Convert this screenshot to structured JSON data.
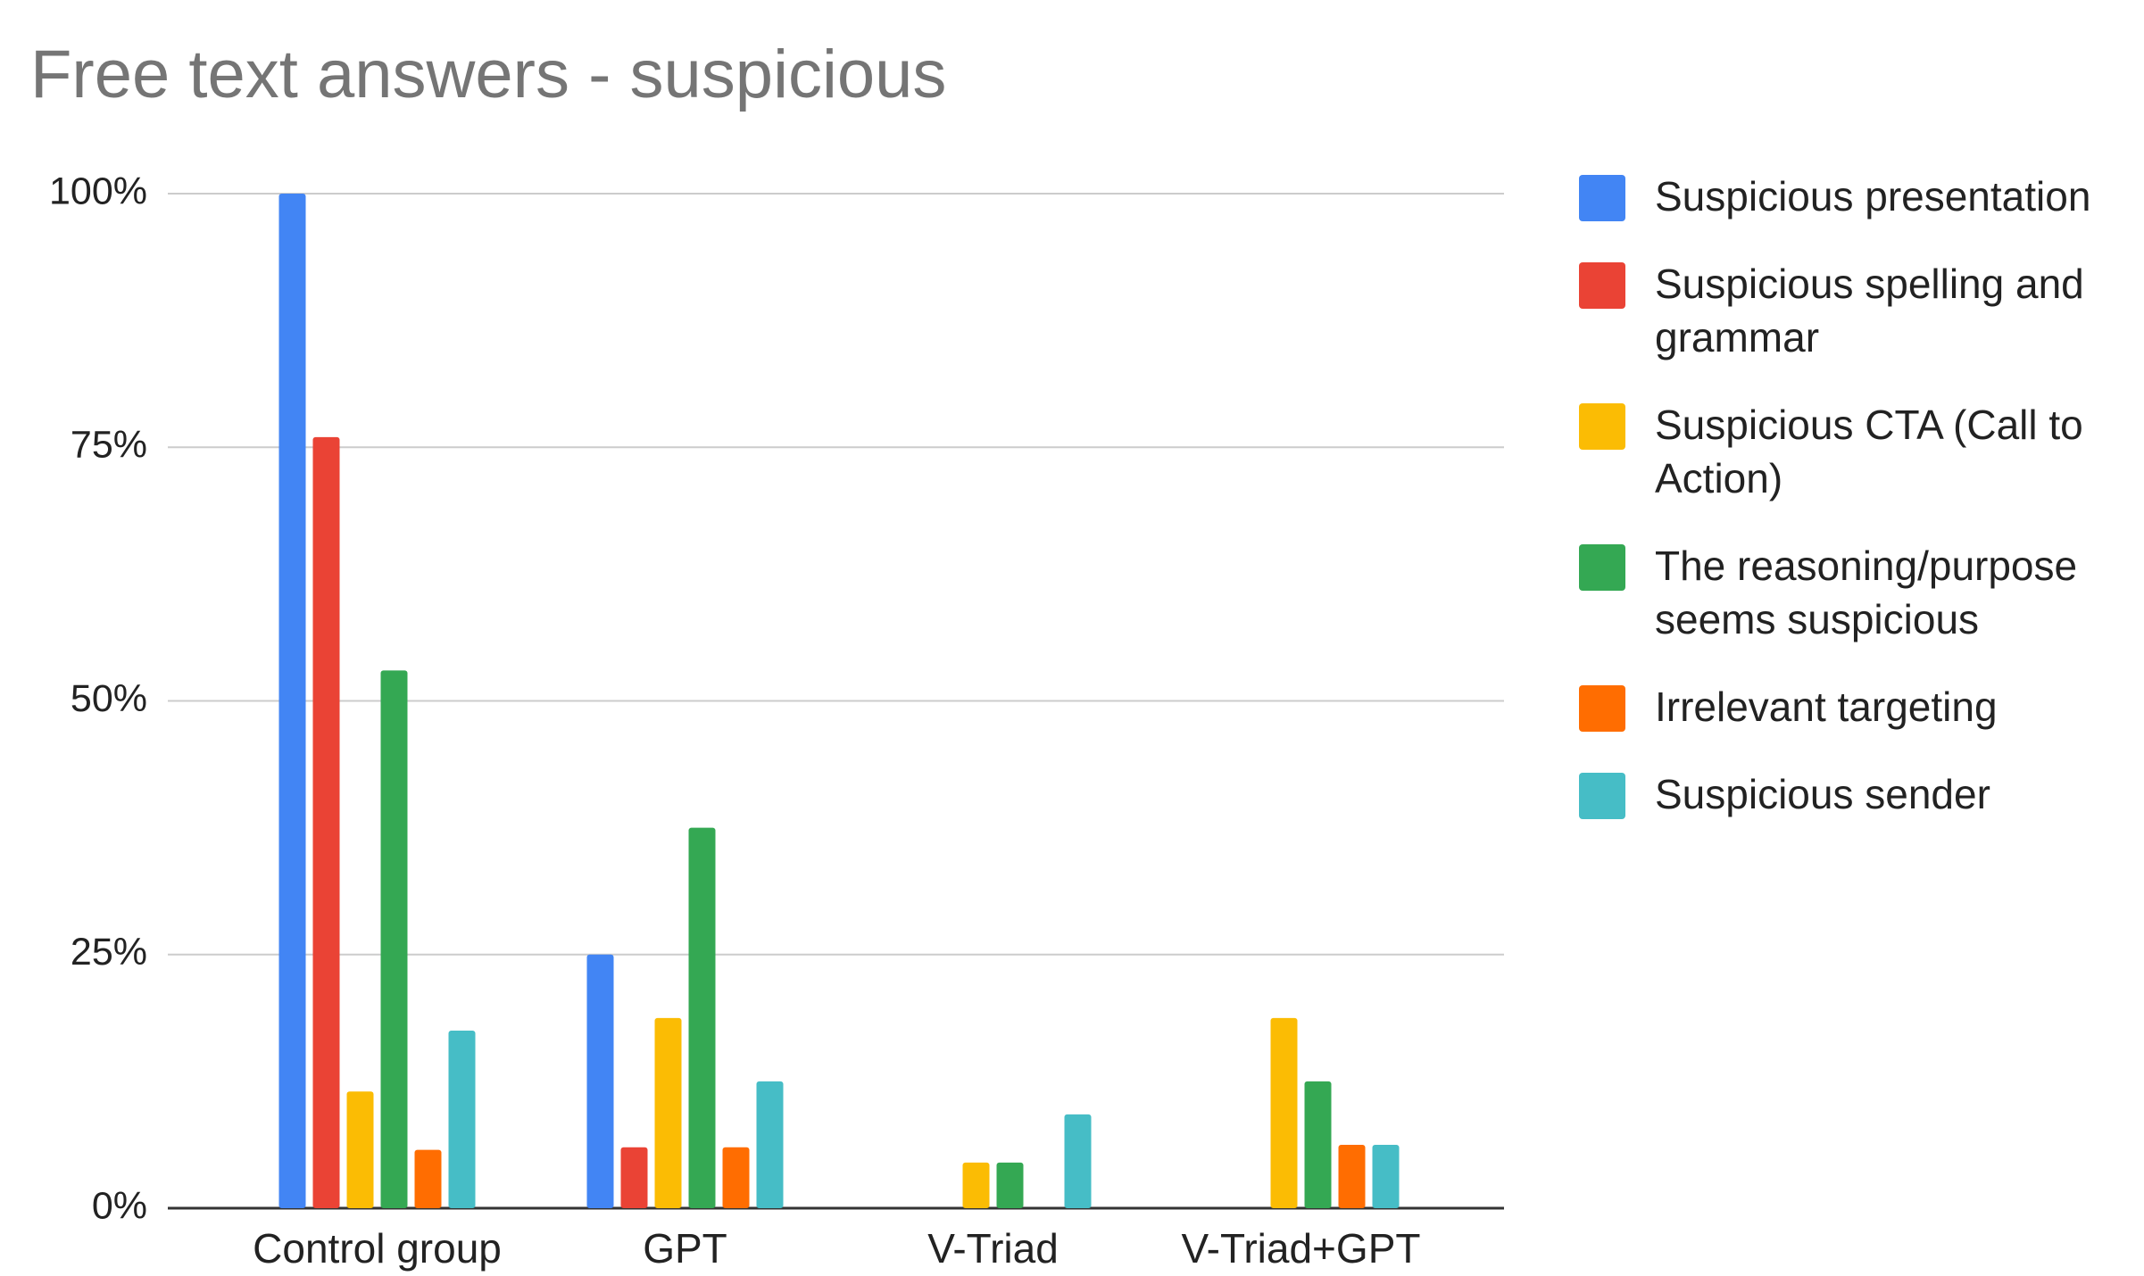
{
  "chart_data": {
    "type": "bar",
    "title": "Free text answers - suspicious",
    "categories": [
      "Control group",
      "GPT",
      "V-Triad",
      "V-Triad+GPT"
    ],
    "series": [
      {
        "name": "Suspicious presentation",
        "color": "#4285f4",
        "values": [
          100,
          25,
          0,
          0
        ]
      },
      {
        "name": "Suspicious spelling and grammar",
        "color": "#ea4335",
        "values": [
          76,
          6,
          0,
          0
        ]
      },
      {
        "name": "Suspicious CTA (Call to Action)",
        "color": "#fbbc04",
        "values": [
          11.5,
          18.75,
          4.5,
          18.75
        ]
      },
      {
        "name": "The reasoning/purpose seems suspicious",
        "color": "#34a853",
        "values": [
          53,
          37.5,
          4.5,
          12.5
        ]
      },
      {
        "name": "Irrelevant targeting",
        "color": "#ff6d01",
        "values": [
          5.75,
          6,
          0,
          6.25
        ]
      },
      {
        "name": "Suspicious sender",
        "color": "#46bdc6",
        "values": [
          17.5,
          12.5,
          9.25,
          6.25
        ]
      }
    ],
    "ylim": [
      0,
      100
    ],
    "yticks": [
      {
        "value": 0,
        "label": "0%"
      },
      {
        "value": 25,
        "label": "25%"
      },
      {
        "value": 50,
        "label": "50%"
      },
      {
        "value": 75,
        "label": "75%"
      },
      {
        "value": 100,
        "label": "100%"
      }
    ],
    "grid": true,
    "legend": "right"
  }
}
